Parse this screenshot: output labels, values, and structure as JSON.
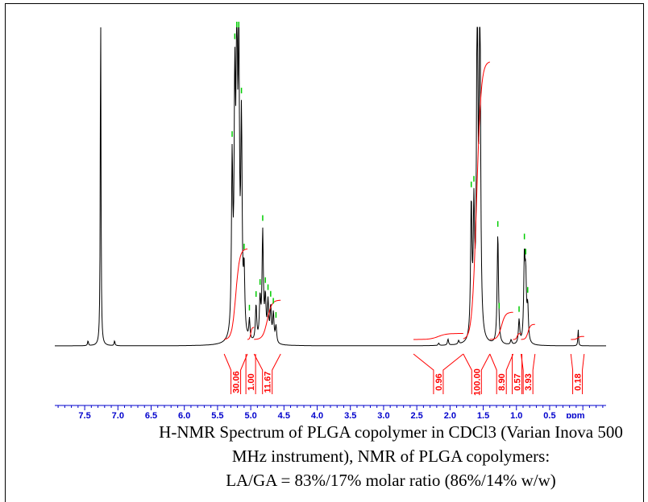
{
  "chart_data": {
    "type": "line",
    "title": "",
    "xlabel": "ppm",
    "ylabel": "",
    "xlim": [
      7.95,
      -0.35
    ],
    "x_reversed": true,
    "grid": false,
    "colors": {
      "spectrum": "#000000",
      "peak_markers": "#00cc00",
      "integrals": "#ff0000",
      "axis": "#0000cc"
    },
    "x_ticks": [
      "7.5",
      "7.0",
      "6.5",
      "6.0",
      "5.5",
      "5.0",
      "4.5",
      "4.0",
      "3.5",
      "3.0",
      "2.5",
      "2.0",
      "1.5",
      "1.0",
      "0.5"
    ],
    "x_tick_values": [
      7.5,
      7.0,
      6.5,
      6.0,
      5.5,
      5.0,
      4.5,
      4.0,
      3.5,
      3.0,
      2.5,
      2.0,
      1.5,
      1.0,
      0.5
    ],
    "peaks": [
      {
        "ppm": 7.45,
        "height": 0.02,
        "width": 0.008
      },
      {
        "ppm": 7.26,
        "height": 1.5,
        "width": 0.006
      },
      {
        "ppm": 7.05,
        "height": 0.02,
        "width": 0.008
      },
      {
        "ppm": 5.28,
        "height": 0.7,
        "width": 0.012
      },
      {
        "ppm": 5.24,
        "height": 0.95,
        "width": 0.012
      },
      {
        "ppm": 5.21,
        "height": 1.3,
        "width": 0.012
      },
      {
        "ppm": 5.18,
        "height": 1.1,
        "width": 0.012
      },
      {
        "ppm": 5.14,
        "height": 0.85,
        "width": 0.012
      },
      {
        "ppm": 5.1,
        "height": 0.25,
        "width": 0.012
      },
      {
        "ppm": 5.02,
        "height": 0.085,
        "width": 0.01
      },
      {
        "ppm": 4.92,
        "height": 0.15,
        "width": 0.012
      },
      {
        "ppm": 4.86,
        "height": 0.17,
        "width": 0.012
      },
      {
        "ppm": 4.82,
        "height": 0.45,
        "width": 0.012
      },
      {
        "ppm": 4.78,
        "height": 0.17,
        "width": 0.012
      },
      {
        "ppm": 4.74,
        "height": 0.16,
        "width": 0.012
      },
      {
        "ppm": 4.7,
        "height": 0.14,
        "width": 0.012
      },
      {
        "ppm": 4.66,
        "height": 0.12,
        "width": 0.012
      },
      {
        "ppm": 4.62,
        "height": 0.07,
        "width": 0.012
      },
      {
        "ppm": 2.17,
        "height": 0.01,
        "width": 0.01
      },
      {
        "ppm": 2.03,
        "height": 0.025,
        "width": 0.01
      },
      {
        "ppm": 1.87,
        "height": 0.015,
        "width": 0.01
      },
      {
        "ppm": 1.68,
        "height": 0.55,
        "width": 0.012
      },
      {
        "ppm": 1.64,
        "height": 0.5,
        "width": 0.012
      },
      {
        "ppm": 1.59,
        "height": 1.5,
        "width": 0.012
      },
      {
        "ppm": 1.55,
        "height": 1.5,
        "width": 0.012
      },
      {
        "ppm": 1.28,
        "height": 0.46,
        "width": 0.012
      },
      {
        "ppm": 1.08,
        "height": 0.02,
        "width": 0.012
      },
      {
        "ppm": 0.96,
        "height": 0.1,
        "width": 0.012
      },
      {
        "ppm": 0.88,
        "height": 0.34,
        "width": 0.012
      },
      {
        "ppm": 0.86,
        "height": 0.24,
        "width": 0.012
      },
      {
        "ppm": 0.83,
        "height": 0.14,
        "width": 0.012
      },
      {
        "ppm": 0.07,
        "height": 0.07,
        "width": 0.006
      }
    ],
    "peak_markers": [
      5.28,
      5.24,
      5.21,
      5.18,
      5.14,
      5.1,
      5.02,
      4.92,
      4.86,
      4.82,
      4.78,
      4.74,
      4.7,
      4.66,
      4.62,
      1.68,
      1.64,
      1.28,
      1.26,
      0.96,
      0.88,
      0.86,
      0.83
    ],
    "integrals": [
      {
        "label": "30.06",
        "from": 5.4,
        "to": 5.05,
        "height_frac": 0.3
      },
      {
        "label": "1.00",
        "from": 5.05,
        "to": 4.95,
        "height_frac": 0.04
      },
      {
        "label": "11.67",
        "from": 4.95,
        "to": 4.55,
        "height_frac": 0.13
      },
      {
        "label": "0.96",
        "from": 2.55,
        "to": 1.8,
        "height_frac": 0.02
      },
      {
        "label": "100.00",
        "from": 1.8,
        "to": 1.4,
        "height_frac": 0.92
      },
      {
        "label": "8.90",
        "from": 1.4,
        "to": 1.05,
        "height_frac": 0.09
      },
      {
        "label": "0.57",
        "from": 1.05,
        "to": 0.93,
        "height_frac": 0.02
      },
      {
        "label": "3.93",
        "from": 0.93,
        "to": 0.72,
        "height_frac": 0.05
      },
      {
        "label": "0.18",
        "from": 0.18,
        "to": -0.02,
        "height_frac": 0.01
      }
    ]
  },
  "caption": {
    "line1": "H-NMR Spectrum of PLGA copolymer in CDCl3 (Varian Inova 500",
    "line2": "MHz instrument), NMR of PLGA copolymers:",
    "line3": "LA/GA = 83%/17% molar ratio (86%/14% w/w)"
  }
}
